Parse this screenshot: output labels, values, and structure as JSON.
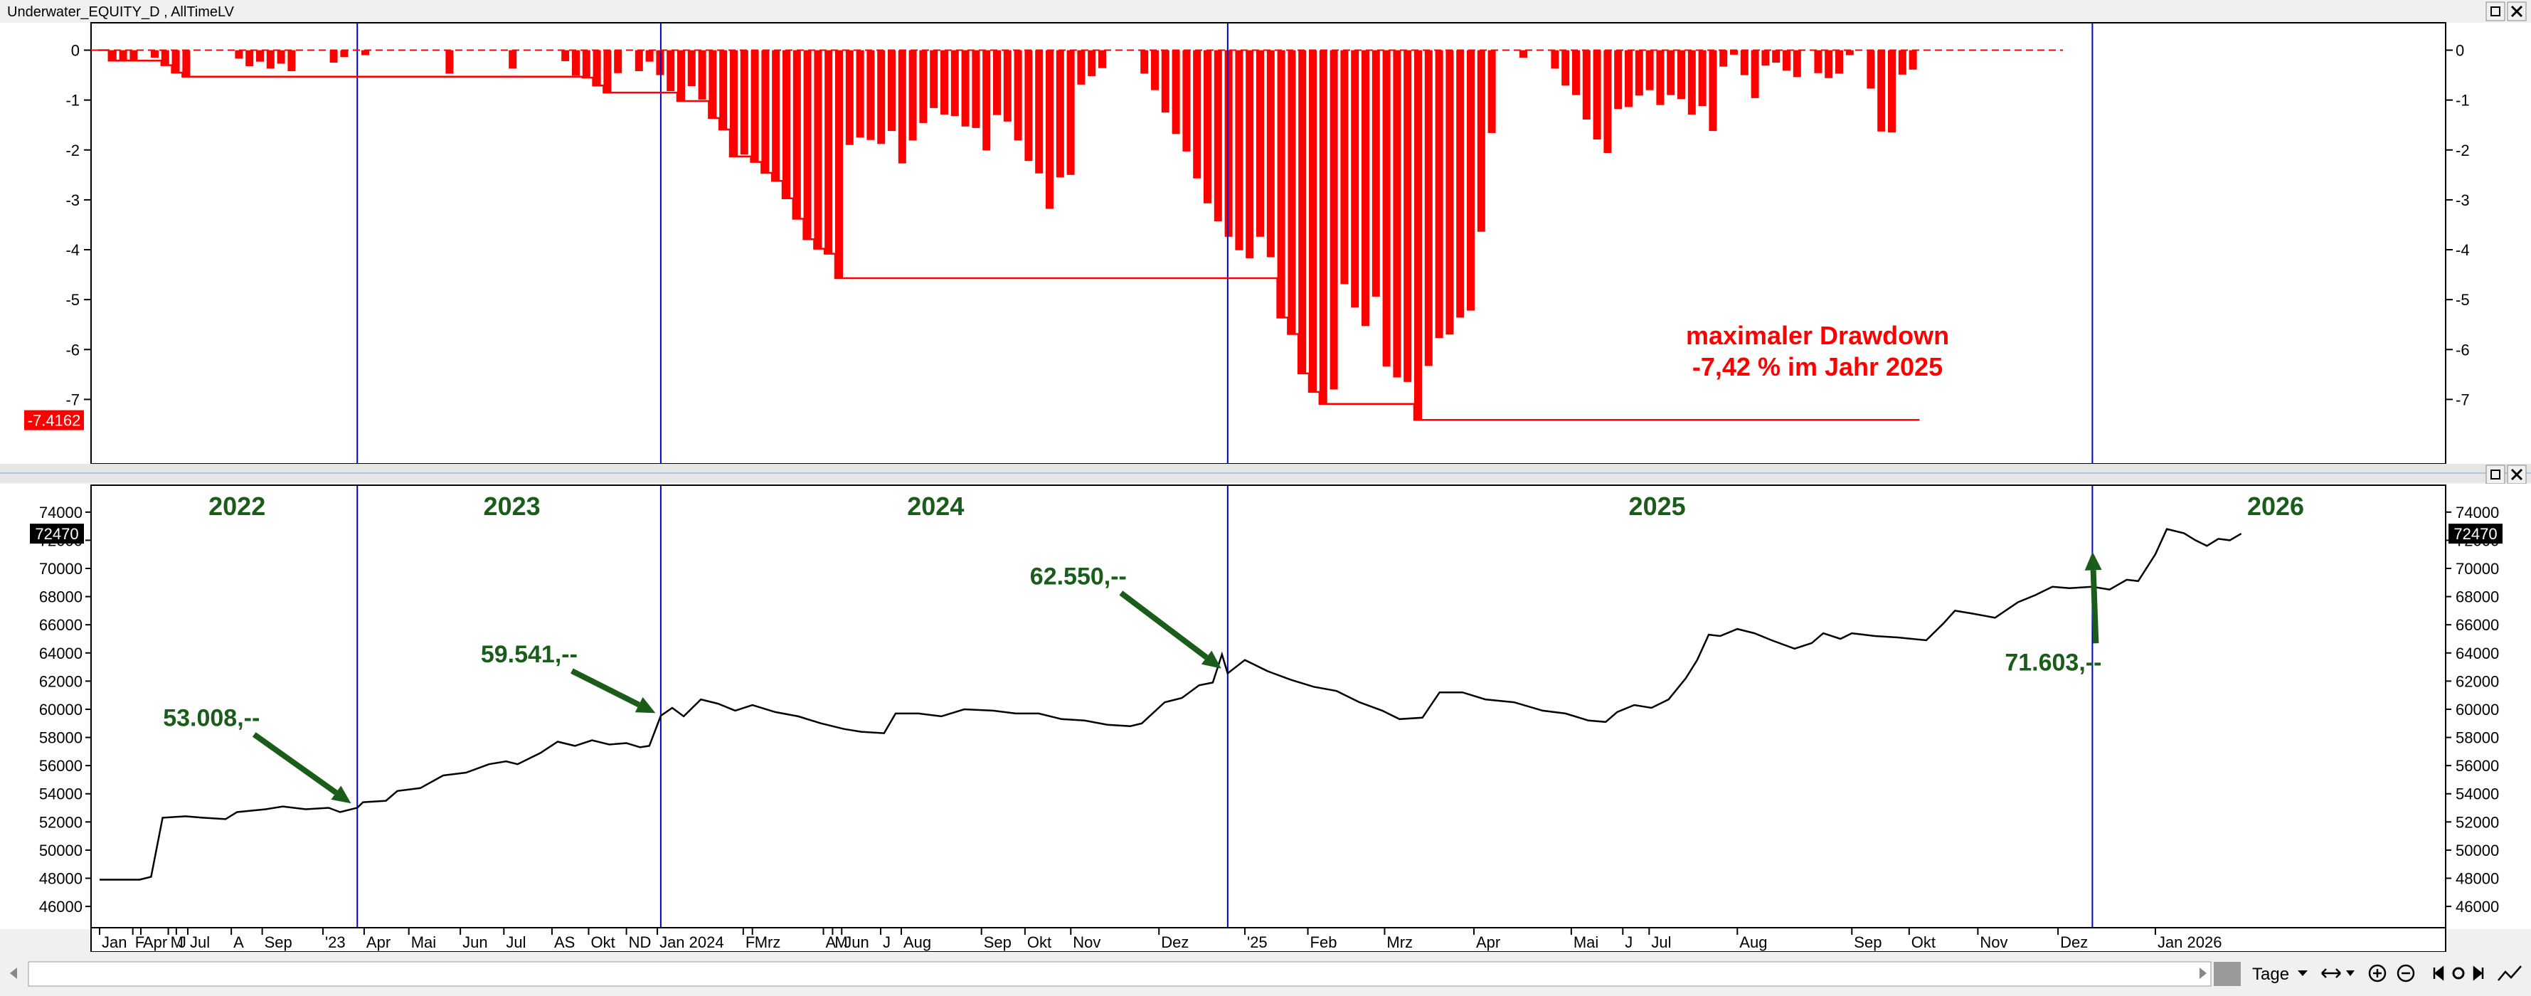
{
  "window": {
    "title": "Underwater_EQUITY_D , AllTimeLV"
  },
  "statusbar": {
    "period_label": "Tage"
  },
  "colors": {
    "bar": "#ff0000",
    "line": "#000000",
    "grid_vertical": "#0000cc",
    "annotation": "#1a5c1a"
  },
  "chart_data": [
    {
      "type": "bar",
      "name": "drawdown",
      "y_ticks": [
        "0",
        "-1",
        "-2",
        "-3",
        "-4",
        "-5",
        "-6",
        "-7"
      ],
      "ylim": [
        -7.75,
        0.15
      ],
      "last_value_label": "-7.4162",
      "annotation_lines": [
        "maximaler Drawdown",
        "-7,42 % im Jahr 2025"
      ],
      "values": [
        0,
        -0.21,
        -0.21,
        -0.2,
        0,
        -0.15,
        -0.3,
        -0.45,
        -0.53,
        0,
        0,
        0,
        0,
        -0.17,
        -0.32,
        -0.23,
        -0.37,
        -0.27,
        -0.42,
        0,
        0,
        0,
        -0.25,
        -0.14,
        0,
        -0.1,
        0,
        0,
        0,
        0,
        0,
        0,
        0,
        -0.47,
        0,
        0,
        0,
        0,
        0,
        -0.37,
        0,
        0,
        0,
        0,
        -0.22,
        -0.51,
        -0.55,
        -0.71,
        -0.85,
        -0.46,
        0,
        -0.42,
        -0.23,
        -0.5,
        -0.82,
        -1.02,
        -0.72,
        -0.99,
        -1.36,
        -1.59,
        -2.13,
        -2.09,
        -2.24,
        -2.46,
        -2.62,
        -2.97,
        -3.38,
        -3.79,
        -3.98,
        -4.08,
        -4.57,
        -1.9,
        -1.75,
        -1.8,
        -1.88,
        -1.62,
        -2.27,
        -1.81,
        -1.46,
        -1.16,
        -1.29,
        -1.32,
        -1.53,
        -1.56,
        -2.01,
        -1.3,
        -1.43,
        -1.81,
        -2.22,
        -2.47,
        -3.18,
        -2.55,
        -2.5,
        -0.69,
        -0.52,
        -0.36,
        0,
        0,
        0,
        -0.47,
        -0.8,
        -1.25,
        -1.68,
        -2.03,
        -2.57,
        -3.07,
        -3.43,
        -3.74,
        -4.01,
        -4.17,
        -3.74,
        -4.15,
        -5.36,
        -5.69,
        -6.48,
        -6.85,
        -7.09,
        -6.8,
        -4.69,
        -5.16,
        -5.53,
        -4.94,
        -6.34,
        -6.56,
        -6.65,
        -7.41,
        -6.33,
        -5.77,
        -5.7,
        -5.36,
        -5.22,
        -3.64,
        -1.66,
        0,
        0,
        -0.15,
        0,
        0,
        -0.37,
        -0.71,
        -0.9,
        -1.39,
        -1.79,
        -2.06,
        -1.18,
        -1.14,
        -0.91,
        -0.8,
        -1.1,
        -0.9,
        -0.98,
        -1.29,
        -1.12,
        -1.62,
        -0.33,
        -0.09,
        -0.5,
        -0.96,
        -0.31,
        -0.25,
        -0.41,
        -0.54,
        0,
        -0.46,
        -0.56,
        -0.47,
        -0.1,
        0,
        -0.77,
        -1.63,
        -1.65,
        -0.49,
        -0.39
      ]
    },
    {
      "type": "line",
      "name": "equity",
      "y_ticks": [
        "74000",
        "72000",
        "70000",
        "68000",
        "66000",
        "64000",
        "62000",
        "60000",
        "58000",
        "56000",
        "54000",
        "52000",
        "50000",
        "48000",
        "46000"
      ],
      "ylim": [
        45500,
        74800
      ],
      "last_value_label": "72470",
      "x_labels": [
        {
          "t": 0.0,
          "label": "Jan"
        },
        {
          "t": 0.29,
          "label": "F"
        },
        {
          "t": 0.36,
          "label": "Apr"
        },
        {
          "t": 0.6,
          "label": "M"
        },
        {
          "t": 0.67,
          "label": "J"
        },
        {
          "t": 0.77,
          "label": "Jul"
        },
        {
          "t": 1.15,
          "label": "A"
        },
        {
          "t": 1.42,
          "label": "Sep"
        },
        {
          "t": 1.95,
          "label": "'23"
        },
        {
          "t": 2.31,
          "label": "Apr"
        },
        {
          "t": 2.7,
          "label": "Mai"
        },
        {
          "t": 3.15,
          "label": "Jun"
        },
        {
          "t": 3.53,
          "label": "Jul"
        },
        {
          "t": 3.95,
          "label": "AS"
        },
        {
          "t": 4.27,
          "label": "Okt"
        },
        {
          "t": 4.6,
          "label": "ND"
        },
        {
          "t": 4.87,
          "label": "Jan 2024"
        },
        {
          "t": 5.62,
          "label": "F"
        },
        {
          "t": 5.7,
          "label": "Mrz"
        },
        {
          "t": 6.32,
          "label": "A"
        },
        {
          "t": 6.4,
          "label": "M"
        },
        {
          "t": 6.48,
          "label": "Jun"
        },
        {
          "t": 6.82,
          "label": "J"
        },
        {
          "t": 7.0,
          "label": "Aug"
        },
        {
          "t": 7.7,
          "label": "Sep"
        },
        {
          "t": 8.08,
          "label": "Okt"
        },
        {
          "t": 8.48,
          "label": "Nov"
        },
        {
          "t": 9.25,
          "label": "Dez"
        },
        {
          "t": 10.0,
          "label": "'25"
        },
        {
          "t": 10.55,
          "label": "Feb"
        },
        {
          "t": 11.22,
          "label": "Mrz"
        },
        {
          "t": 12.0,
          "label": "Apr"
        },
        {
          "t": 12.85,
          "label": "Mai"
        },
        {
          "t": 13.3,
          "label": "J"
        },
        {
          "t": 13.53,
          "label": "Jul"
        },
        {
          "t": 14.3,
          "label": "Aug"
        },
        {
          "t": 15.3,
          "label": "Sep"
        },
        {
          "t": 15.8,
          "label": "Okt"
        },
        {
          "t": 16.4,
          "label": "Nov"
        },
        {
          "t": 17.1,
          "label": "Dez"
        },
        {
          "t": 17.95,
          "label": "Jan 2026"
        }
      ],
      "year_labels": [
        {
          "t": 1.2,
          "label": "2022"
        },
        {
          "t": 3.6,
          "label": "2023"
        },
        {
          "t": 7.3,
          "label": "2024"
        },
        {
          "t": 13.6,
          "label": "2025"
        },
        {
          "t": 19.0,
          "label": "2026"
        }
      ],
      "year_separators": [
        2.25,
        4.9,
        9.85,
        17.4
      ],
      "annotations": [
        {
          "label": "53.008,--",
          "x": 2.25,
          "y": 53008
        },
        {
          "label": "59.541,--",
          "x": 4.9,
          "y": 59541
        },
        {
          "label": "62.550,--",
          "x": 9.85,
          "y": 62550
        },
        {
          "label": "71.603,--",
          "x": 17.4,
          "y": 71603
        }
      ],
      "series": [
        {
          "x": 0.0,
          "y": 47900
        },
        {
          "x": 0.35,
          "y": 47900
        },
        {
          "x": 0.45,
          "y": 48100
        },
        {
          "x": 0.55,
          "y": 52300
        },
        {
          "x": 0.75,
          "y": 52400
        },
        {
          "x": 0.9,
          "y": 52300
        },
        {
          "x": 1.1,
          "y": 52200
        },
        {
          "x": 1.2,
          "y": 52700
        },
        {
          "x": 1.45,
          "y": 52900
        },
        {
          "x": 1.6,
          "y": 53100
        },
        {
          "x": 1.8,
          "y": 52900
        },
        {
          "x": 2.0,
          "y": 53000
        },
        {
          "x": 2.1,
          "y": 52700
        },
        {
          "x": 2.25,
          "y": 53008
        },
        {
          "x": 2.3,
          "y": 53400
        },
        {
          "x": 2.5,
          "y": 53500
        },
        {
          "x": 2.6,
          "y": 54200
        },
        {
          "x": 2.8,
          "y": 54400
        },
        {
          "x": 3.0,
          "y": 55300
        },
        {
          "x": 3.2,
          "y": 55500
        },
        {
          "x": 3.4,
          "y": 56100
        },
        {
          "x": 3.55,
          "y": 56300
        },
        {
          "x": 3.65,
          "y": 56100
        },
        {
          "x": 3.85,
          "y": 56900
        },
        {
          "x": 4.0,
          "y": 57700
        },
        {
          "x": 4.15,
          "y": 57400
        },
        {
          "x": 4.3,
          "y": 57800
        },
        {
          "x": 4.45,
          "y": 57500
        },
        {
          "x": 4.6,
          "y": 57600
        },
        {
          "x": 4.72,
          "y": 57300
        },
        {
          "x": 4.8,
          "y": 57400
        },
        {
          "x": 4.9,
          "y": 59541
        },
        {
          "x": 5.0,
          "y": 60100
        },
        {
          "x": 5.1,
          "y": 59500
        },
        {
          "x": 5.25,
          "y": 60700
        },
        {
          "x": 5.4,
          "y": 60400
        },
        {
          "x": 5.55,
          "y": 59900
        },
        {
          "x": 5.7,
          "y": 60300
        },
        {
          "x": 5.9,
          "y": 59800
        },
        {
          "x": 6.1,
          "y": 59500
        },
        {
          "x": 6.3,
          "y": 59000
        },
        {
          "x": 6.5,
          "y": 58600
        },
        {
          "x": 6.65,
          "y": 58400
        },
        {
          "x": 6.85,
          "y": 58300
        },
        {
          "x": 6.95,
          "y": 59700
        },
        {
          "x": 7.15,
          "y": 59700
        },
        {
          "x": 7.35,
          "y": 59500
        },
        {
          "x": 7.55,
          "y": 60000
        },
        {
          "x": 7.8,
          "y": 59900
        },
        {
          "x": 8.0,
          "y": 59700
        },
        {
          "x": 8.2,
          "y": 59700
        },
        {
          "x": 8.4,
          "y": 59300
        },
        {
          "x": 8.6,
          "y": 59200
        },
        {
          "x": 8.8,
          "y": 58900
        },
        {
          "x": 9.0,
          "y": 58800
        },
        {
          "x": 9.1,
          "y": 59000
        },
        {
          "x": 9.3,
          "y": 60500
        },
        {
          "x": 9.45,
          "y": 60800
        },
        {
          "x": 9.6,
          "y": 61700
        },
        {
          "x": 9.72,
          "y": 61900
        },
        {
          "x": 9.8,
          "y": 63900
        },
        {
          "x": 9.85,
          "y": 62550
        },
        {
          "x": 10.0,
          "y": 63500
        },
        {
          "x": 10.2,
          "y": 62700
        },
        {
          "x": 10.4,
          "y": 62100
        },
        {
          "x": 10.6,
          "y": 61600
        },
        {
          "x": 10.8,
          "y": 61300
        },
        {
          "x": 11.0,
          "y": 60500
        },
        {
          "x": 11.2,
          "y": 59900
        },
        {
          "x": 11.35,
          "y": 59300
        },
        {
          "x": 11.55,
          "y": 59400
        },
        {
          "x": 11.7,
          "y": 61200
        },
        {
          "x": 11.9,
          "y": 61200
        },
        {
          "x": 12.1,
          "y": 60700
        },
        {
          "x": 12.35,
          "y": 60500
        },
        {
          "x": 12.6,
          "y": 59900
        },
        {
          "x": 12.8,
          "y": 59700
        },
        {
          "x": 13.0,
          "y": 59200
        },
        {
          "x": 13.15,
          "y": 59100
        },
        {
          "x": 13.25,
          "y": 59800
        },
        {
          "x": 13.4,
          "y": 60300
        },
        {
          "x": 13.55,
          "y": 60100
        },
        {
          "x": 13.7,
          "y": 60700
        },
        {
          "x": 13.85,
          "y": 62200
        },
        {
          "x": 13.95,
          "y": 63500
        },
        {
          "x": 14.05,
          "y": 65300
        },
        {
          "x": 14.15,
          "y": 65200
        },
        {
          "x": 14.3,
          "y": 65700
        },
        {
          "x": 14.45,
          "y": 65400
        },
        {
          "x": 14.6,
          "y": 64900
        },
        {
          "x": 14.8,
          "y": 64300
        },
        {
          "x": 14.95,
          "y": 64700
        },
        {
          "x": 15.05,
          "y": 65400
        },
        {
          "x": 15.2,
          "y": 65000
        },
        {
          "x": 15.3,
          "y": 65400
        },
        {
          "x": 15.5,
          "y": 65200
        },
        {
          "x": 15.7,
          "y": 65100
        },
        {
          "x": 15.95,
          "y": 64900
        },
        {
          "x": 16.1,
          "y": 66100
        },
        {
          "x": 16.2,
          "y": 67000
        },
        {
          "x": 16.35,
          "y": 66800
        },
        {
          "x": 16.55,
          "y": 66500
        },
        {
          "x": 16.75,
          "y": 67600
        },
        {
          "x": 16.9,
          "y": 68100
        },
        {
          "x": 17.05,
          "y": 68700
        },
        {
          "x": 17.2,
          "y": 68600
        },
        {
          "x": 17.4,
          "y": 68700
        },
        {
          "x": 17.55,
          "y": 68500
        },
        {
          "x": 17.7,
          "y": 69200
        },
        {
          "x": 17.8,
          "y": 69100
        },
        {
          "x": 17.95,
          "y": 71000
        },
        {
          "x": 18.05,
          "y": 72800
        },
        {
          "x": 18.2,
          "y": 72500
        },
        {
          "x": 18.3,
          "y": 72000
        },
        {
          "x": 18.4,
          "y": 71603
        },
        {
          "x": 18.5,
          "y": 72100
        },
        {
          "x": 18.6,
          "y": 72000
        },
        {
          "x": 18.7,
          "y": 72470
        }
      ]
    }
  ]
}
